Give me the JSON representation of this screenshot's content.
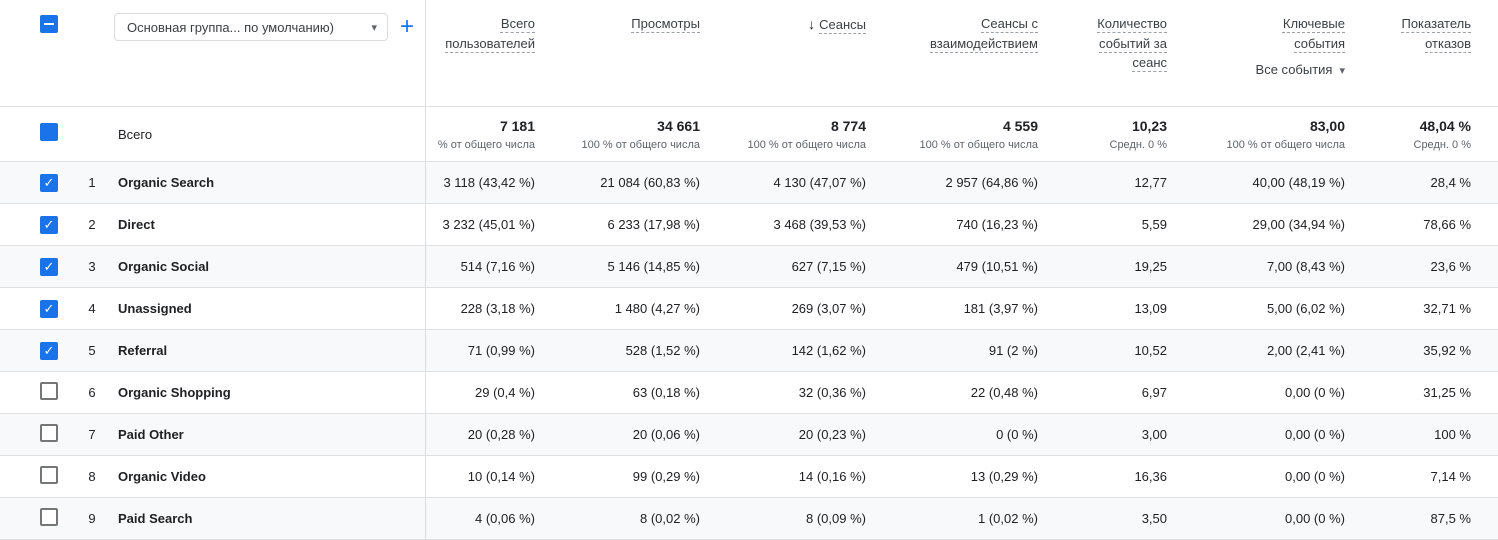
{
  "colors": {
    "accent": "#1a73e8",
    "text": "#202124",
    "secondary": "#5f6368",
    "border": "#e0e0e0",
    "stripe": "#f8f9fa"
  },
  "icons": {
    "caret": "▾",
    "sort_desc": "↓",
    "check": "✓"
  },
  "toolbar": {
    "dimension_selector": {
      "value": "Основная группа... по умолчанию)"
    },
    "add_label": "+"
  },
  "table": {
    "columns": [
      {
        "label": "Всего\nпользователей"
      },
      {
        "label": "Просмотры"
      },
      {
        "label": "Сеансы",
        "sorted": "desc"
      },
      {
        "label": "Сеансы с\nвзаимодействием"
      },
      {
        "label": "Количество\nсобытий за\nсеанс"
      },
      {
        "label": "Ключевые\nсобытия",
        "filter": "Все события"
      },
      {
        "label": "Показатель\nотказов"
      }
    ],
    "totals": {
      "label": "Всего",
      "checked": true,
      "cells": [
        {
          "value": "7 181",
          "sub": "% от общего числа"
        },
        {
          "value": "34 661",
          "sub": "100 % от общего числа"
        },
        {
          "value": "8 774",
          "sub": "100 % от общего числа"
        },
        {
          "value": "4 559",
          "sub": "100 % от общего числа"
        },
        {
          "value": "10,23",
          "sub": "Средн. 0 %"
        },
        {
          "value": "83,00",
          "sub": "100 % от общего числа"
        },
        {
          "value": "48,04 %",
          "sub": "Средн. 0 %"
        }
      ]
    },
    "rows": [
      {
        "index": "1",
        "checked": true,
        "name": "Organic Search",
        "values": [
          "3 118 (43,42 %)",
          "21 084 (60,83 %)",
          "4 130 (47,07 %)",
          "2 957 (64,86 %)",
          "12,77",
          "40,00 (48,19 %)",
          "28,4 %"
        ]
      },
      {
        "index": "2",
        "checked": true,
        "name": "Direct",
        "values": [
          "3 232 (45,01 %)",
          "6 233 (17,98 %)",
          "3 468 (39,53 %)",
          "740 (16,23 %)",
          "5,59",
          "29,00 (34,94 %)",
          "78,66 %"
        ]
      },
      {
        "index": "3",
        "checked": true,
        "name": "Organic Social",
        "values": [
          "514 (7,16 %)",
          "5 146 (14,85 %)",
          "627 (7,15 %)",
          "479 (10,51 %)",
          "19,25",
          "7,00 (8,43 %)",
          "23,6 %"
        ]
      },
      {
        "index": "4",
        "checked": true,
        "name": "Unassigned",
        "values": [
          "228 (3,18 %)",
          "1 480 (4,27 %)",
          "269 (3,07 %)",
          "181 (3,97 %)",
          "13,09",
          "5,00 (6,02 %)",
          "32,71 %"
        ]
      },
      {
        "index": "5",
        "checked": true,
        "name": "Referral",
        "values": [
          "71 (0,99 %)",
          "528 (1,52 %)",
          "142 (1,62 %)",
          "91 (2 %)",
          "10,52",
          "2,00 (2,41 %)",
          "35,92 %"
        ]
      },
      {
        "index": "6",
        "checked": false,
        "name": "Organic Shopping",
        "values": [
          "29 (0,4 %)",
          "63 (0,18 %)",
          "32 (0,36 %)",
          "22 (0,48 %)",
          "6,97",
          "0,00 (0 %)",
          "31,25 %"
        ]
      },
      {
        "index": "7",
        "checked": false,
        "name": "Paid Other",
        "values": [
          "20 (0,28 %)",
          "20 (0,06 %)",
          "20 (0,23 %)",
          "0 (0 %)",
          "3,00",
          "0,00 (0 %)",
          "100 %"
        ]
      },
      {
        "index": "8",
        "checked": false,
        "name": "Organic Video",
        "values": [
          "10 (0,14 %)",
          "99 (0,29 %)",
          "14 (0,16 %)",
          "13 (0,29 %)",
          "16,36",
          "0,00 (0 %)",
          "7,14 %"
        ]
      },
      {
        "index": "9",
        "checked": false,
        "name": "Paid Search",
        "values": [
          "4 (0,06 %)",
          "8 (0,02 %)",
          "8 (0,09 %)",
          "1 (0,02 %)",
          "3,50",
          "0,00 (0 %)",
          "87,5 %"
        ]
      }
    ]
  }
}
